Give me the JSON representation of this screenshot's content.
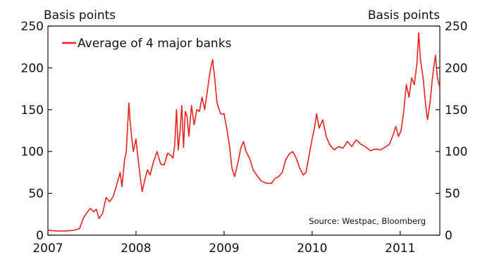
{
  "chart_data": {
    "type": "line",
    "left_unit_label": "Basis points",
    "right_unit_label": "Basis points",
    "source": "Source: Westpac, Bloomberg",
    "legend_placement": "top-left",
    "grid": false,
    "x_range": [
      2007.0,
      2011.45
    ],
    "ylim": [
      0,
      250
    ],
    "x_ticks": [
      2007,
      2008,
      2009,
      2010,
      2011
    ],
    "x_tick_labels": [
      "2007",
      "2008",
      "2009",
      "2010",
      "2011"
    ],
    "y_ticks": [
      0,
      50,
      100,
      150,
      200,
      250
    ],
    "y_tick_labels": [
      "0",
      "50",
      "100",
      "150",
      "200",
      "250"
    ],
    "series": [
      {
        "name": "Average of 4 major banks",
        "color": "#e8231f",
        "points": [
          [
            2007.0,
            6
          ],
          [
            2007.1,
            5
          ],
          [
            2007.2,
            5
          ],
          [
            2007.3,
            6
          ],
          [
            2007.36,
            8
          ],
          [
            2007.4,
            20
          ],
          [
            2007.45,
            28
          ],
          [
            2007.48,
            32
          ],
          [
            2007.52,
            28
          ],
          [
            2007.55,
            31
          ],
          [
            2007.58,
            20
          ],
          [
            2007.62,
            26
          ],
          [
            2007.66,
            45
          ],
          [
            2007.7,
            40
          ],
          [
            2007.74,
            46
          ],
          [
            2007.78,
            60
          ],
          [
            2007.82,
            75
          ],
          [
            2007.84,
            58
          ],
          [
            2007.87,
            90
          ],
          [
            2007.89,
            100
          ],
          [
            2007.9,
            120
          ],
          [
            2007.92,
            158
          ],
          [
            2007.93,
            140
          ],
          [
            2007.95,
            118
          ],
          [
            2007.97,
            100
          ],
          [
            2008.0,
            115
          ],
          [
            2008.02,
            95
          ],
          [
            2008.05,
            68
          ],
          [
            2008.07,
            52
          ],
          [
            2008.1,
            66
          ],
          [
            2008.13,
            78
          ],
          [
            2008.16,
            72
          ],
          [
            2008.2,
            88
          ],
          [
            2008.24,
            100
          ],
          [
            2008.28,
            85
          ],
          [
            2008.32,
            84
          ],
          [
            2008.36,
            98
          ],
          [
            2008.4,
            95
          ],
          [
            2008.42,
            92
          ],
          [
            2008.44,
            108
          ],
          [
            2008.46,
            150
          ],
          [
            2008.48,
            102
          ],
          [
            2008.5,
            124
          ],
          [
            2008.52,
            155
          ],
          [
            2008.54,
            105
          ],
          [
            2008.56,
            148
          ],
          [
            2008.58,
            142
          ],
          [
            2008.6,
            118
          ],
          [
            2008.63,
            155
          ],
          [
            2008.66,
            132
          ],
          [
            2008.69,
            150
          ],
          [
            2008.72,
            148
          ],
          [
            2008.75,
            165
          ],
          [
            2008.78,
            150
          ],
          [
            2008.81,
            172
          ],
          [
            2008.84,
            195
          ],
          [
            2008.87,
            210
          ],
          [
            2008.89,
            192
          ],
          [
            2008.92,
            158
          ],
          [
            2008.96,
            145
          ],
          [
            2009.0,
            145
          ],
          [
            2009.03,
            128
          ],
          [
            2009.06,
            108
          ],
          [
            2009.09,
            80
          ],
          [
            2009.12,
            70
          ],
          [
            2009.16,
            88
          ],
          [
            2009.19,
            104
          ],
          [
            2009.22,
            112
          ],
          [
            2009.25,
            100
          ],
          [
            2009.29,
            92
          ],
          [
            2009.33,
            78
          ],
          [
            2009.37,
            72
          ],
          [
            2009.42,
            65
          ],
          [
            2009.48,
            62
          ],
          [
            2009.54,
            62
          ],
          [
            2009.58,
            68
          ],
          [
            2009.62,
            70
          ],
          [
            2009.66,
            75
          ],
          [
            2009.7,
            90
          ],
          [
            2009.74,
            97
          ],
          [
            2009.78,
            100
          ],
          [
            2009.82,
            92
          ],
          [
            2009.86,
            80
          ],
          [
            2009.9,
            72
          ],
          [
            2009.93,
            75
          ],
          [
            2009.96,
            92
          ],
          [
            2010.0,
            115
          ],
          [
            2010.03,
            130
          ],
          [
            2010.05,
            145
          ],
          [
            2010.08,
            128
          ],
          [
            2010.12,
            138
          ],
          [
            2010.16,
            118
          ],
          [
            2010.2,
            108
          ],
          [
            2010.25,
            102
          ],
          [
            2010.3,
            106
          ],
          [
            2010.35,
            104
          ],
          [
            2010.4,
            112
          ],
          [
            2010.45,
            106
          ],
          [
            2010.5,
            114
          ],
          [
            2010.55,
            109
          ],
          [
            2010.6,
            106
          ],
          [
            2010.66,
            101
          ],
          [
            2010.72,
            103
          ],
          [
            2010.78,
            102
          ],
          [
            2010.84,
            106
          ],
          [
            2010.88,
            109
          ],
          [
            2010.92,
            120
          ],
          [
            2010.95,
            130
          ],
          [
            2010.98,
            118
          ],
          [
            2011.01,
            125
          ],
          [
            2011.04,
            148
          ],
          [
            2011.07,
            180
          ],
          [
            2011.1,
            165
          ],
          [
            2011.13,
            188
          ],
          [
            2011.16,
            180
          ],
          [
            2011.19,
            205
          ],
          [
            2011.21,
            242
          ],
          [
            2011.23,
            210
          ],
          [
            2011.26,
            188
          ],
          [
            2011.29,
            155
          ],
          [
            2011.31,
            138
          ],
          [
            2011.34,
            160
          ],
          [
            2011.36,
            182
          ],
          [
            2011.38,
            200
          ],
          [
            2011.4,
            215
          ],
          [
            2011.42,
            190
          ],
          [
            2011.45,
            176
          ]
        ]
      }
    ]
  }
}
